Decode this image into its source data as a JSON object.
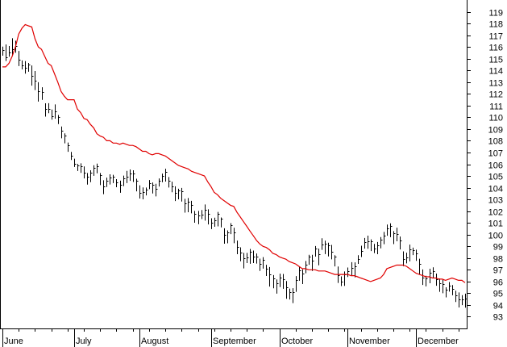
{
  "chart_data": {
    "type": "line",
    "title": "",
    "xlabel": "",
    "ylabel": "",
    "ylim": [
      92,
      120
    ],
    "y_ticks": [
      93,
      94,
      95,
      96,
      97,
      98,
      99,
      100,
      101,
      102,
      103,
      104,
      105,
      106,
      107,
      108,
      109,
      110,
      111,
      112,
      113,
      114,
      115,
      116,
      117,
      118,
      119
    ],
    "y_axis_side": "right",
    "grid": false,
    "legend": "none",
    "x_tick_labels": [
      "June",
      "July",
      "August",
      "September",
      "October",
      "November",
      "December"
    ],
    "month_start_bar": [
      0,
      22,
      42,
      64,
      85,
      106,
      127
    ],
    "bar_count": 143,
    "colors": {
      "bars": "#000000",
      "line": "#e00000",
      "axis": "#000000",
      "background": "#ffffff"
    },
    "series": [
      {
        "type": "ohlc",
        "close": [
          115.75,
          115.13,
          115.55,
          115.81,
          116.08,
          114.92,
          114.43,
          114.19,
          114.53,
          113.56,
          113.15,
          112.23,
          112.17,
          110.7,
          110.7,
          110.08,
          110.54,
          110.01,
          108.87,
          108.43,
          107.65,
          106.74,
          106.02,
          105.88,
          105.8,
          105.27,
          104.96,
          105.25,
          105.69,
          105.86,
          105.04,
          104.11,
          104.59,
          104.88,
          104.93,
          104.46,
          104.24,
          104.79,
          104.94,
          105.19,
          105.24,
          104.6,
          103.59,
          103.63,
          103.81,
          104.38,
          104.26,
          103.9,
          104.6,
          105.01,
          105.34,
          104.62,
          104.12,
          103.56,
          103.79,
          103.71,
          102.64,
          102.82,
          102.55,
          101.75,
          101.65,
          101.71,
          102.12,
          101.78,
          101.03,
          101.22,
          101.79,
          101.34,
          99.98,
          100.17,
          100.79,
          100.19,
          98.93,
          98.48,
          97.98,
          98.04,
          98.53,
          98.13,
          98.11,
          97.52,
          97.87,
          97.12,
          96.6,
          96.24,
          95.84,
          96.31,
          96.21,
          95.53,
          95.09,
          95.07,
          96.11,
          96.93,
          96.71,
          97.44,
          98.11,
          97.78,
          98.78,
          98.36,
          99.14,
          99.2,
          99.09,
          98.51,
          98.11,
          96.57,
          96.02,
          96.58,
          96.86,
          97.15,
          97.3,
          97.91,
          98.63,
          99.37,
          99.43,
          99.45,
          98.84,
          99.07,
          99.59,
          99.92,
          100.55,
          100.73,
          100.11,
          100.08,
          99.52,
          97.92,
          98.07,
          98.74,
          98.67,
          98.38,
          97.5,
          96.31,
          96.26,
          96.72,
          96.91,
          96.19,
          95.86,
          95.81,
          95.3,
          95.67,
          95.35,
          94.84,
          94.46,
          94.45,
          94.55
        ],
        "high": [
          116.03,
          116.21,
          116.08,
          116.74,
          116.53,
          115.66,
          114.85,
          114.79,
          114.63,
          114.42,
          113.95,
          112.99,
          112.56,
          111.19,
          111.2,
          110.66,
          111.1,
          110.2,
          109.22,
          108.63,
          107.85,
          107.05,
          106.47,
          106.03,
          106.08,
          105.81,
          105.25,
          105.48,
          105.91,
          106.05,
          105.25,
          104.63,
          104.86,
          105.14,
          105.1,
          104.73,
          104.6,
          105.03,
          105.43,
          105.55,
          105.48,
          104.76,
          104.2,
          104.02,
          104.01,
          104.65,
          104.44,
          104.33,
          104.79,
          105.2,
          105.61,
          104.91,
          104.51,
          104.12,
          103.91,
          103.98,
          103.05,
          103.12,
          102.88,
          102.02,
          102.02,
          102.1,
          102.57,
          102.16,
          101.39,
          101.44,
          101.93,
          101.46,
          100.54,
          100.36,
          100.98,
          100.58,
          99.49,
          98.91,
          98.44,
          98.44,
          98.78,
          98.64,
          98.39,
          97.95,
          98.08,
          97.43,
          97.24,
          96.55,
          96.18,
          96.67,
          96.64,
          96.04,
          95.4,
          95.43,
          96.46,
          97.29,
          97.03,
          97.75,
          98.28,
          98.28,
          99.03,
          98.8,
          99.69,
          99.48,
          99.31,
          99.12,
          98.24,
          97.28,
          96.44,
          96.86,
          97.19,
          97.65,
          97.63,
          98.24,
          99.05,
          99.71,
          99.91,
          99.59,
          99.21,
          99.37,
          99.79,
          100.23,
          100.86,
          100.96,
          100.3,
          100.59,
          99.83,
          98.57,
          98.46,
          99.15,
          98.89,
          98.72,
          97.94,
          97.03,
          96.49,
          97.09,
          97.21,
          96.68,
          96.26,
          96.17,
          95.51,
          95.96,
          95.7,
          95.22,
          95.07,
          94.84,
          94.97
        ],
        "low": [
          115.25,
          114.8,
          115.17,
          115.27,
          115.5,
          114.37,
          114.08,
          113.72,
          113.89,
          112.7,
          112.32,
          111.34,
          111.49,
          110.06,
          110.35,
          109.8,
          109.88,
          109.42,
          108.21,
          107.78,
          107.06,
          106.36,
          105.77,
          105.42,
          105.26,
          104.79,
          104.26,
          104.47,
          105.01,
          105.23,
          104.22,
          103.45,
          104.06,
          104.27,
          104.39,
          104.04,
          103.57,
          104.13,
          104.39,
          104.58,
          104.49,
          103.69,
          103.08,
          103.01,
          103.34,
          103.88,
          103.51,
          103.26,
          104.1,
          104.47,
          104.52,
          104.01,
          103.61,
          102.86,
          103.01,
          102.82,
          101.87,
          101.91,
          101.81,
          101.01,
          100.88,
          101.32,
          101.19,
          100.87,
          100.47,
          100.67,
          100.7,
          100.62,
          99.22,
          99.26,
          100.04,
          99.27,
          98.33,
          97.73,
          97.12,
          97.57,
          97.51,
          97.57,
          97.53,
          96.9,
          97.1,
          96.47,
          95.57,
          95.42,
          94.97,
          95.53,
          95.38,
          94.53,
          94.47,
          94.16,
          95.12,
          96.07,
          95.78,
          96.7,
          97.43,
          96.9,
          98.12,
          97.38,
          98.7,
          98.34,
          98.14,
          97.89,
          97.29,
          95.88,
          95.61,
          95.63,
          96.39,
          96.52,
          96.35,
          97.5,
          98.09,
          98.8,
          98.79,
          98.6,
          98.42,
          98.33,
          98.83,
          99.18,
          99.9,
          99.78,
          99.19,
          99.43,
          98.73,
          97.31,
          97.55,
          97.72,
          98.25,
          97.76,
          96.6,
          95.71,
          95.59,
          95.85,
          96.3,
          95.64,
          95.12,
          95.0,
          94.65,
          95.14,
          94.83,
          94.25,
          93.79,
          93.99,
          93.77
        ]
      },
      {
        "type": "line",
        "color": "#e00000",
        "values": [
          114.3,
          114.3,
          114.6,
          115.2,
          116.0,
          117.1,
          117.6,
          117.9,
          117.8,
          117.7,
          116.7,
          116.0,
          115.8,
          115.2,
          114.6,
          114.4,
          113.7,
          113.0,
          112.2,
          111.8,
          111.5,
          111.5,
          111.5,
          110.7,
          110.4,
          109.9,
          109.8,
          109.4,
          109.1,
          108.6,
          108.4,
          108.3,
          108.0,
          108.0,
          107.8,
          107.8,
          107.7,
          107.8,
          107.7,
          107.6,
          107.6,
          107.5,
          107.3,
          107.1,
          107.1,
          106.9,
          106.8,
          106.9,
          106.9,
          106.8,
          106.7,
          106.5,
          106.3,
          106.1,
          105.9,
          105.8,
          105.7,
          105.6,
          105.4,
          105.3,
          105.2,
          105.1,
          105.0,
          104.5,
          104.1,
          103.6,
          103.4,
          103.1,
          102.9,
          102.7,
          102.5,
          102.4,
          101.9,
          101.5,
          101.1,
          100.7,
          100.3,
          99.9,
          99.5,
          99.2,
          99.0,
          98.9,
          98.7,
          98.4,
          98.3,
          98.1,
          98.0,
          97.9,
          97.7,
          97.6,
          97.5,
          97.3,
          97.1,
          97.1,
          97.0,
          97.0,
          97.0,
          96.9,
          96.9,
          96.9,
          96.8,
          96.7,
          96.6,
          96.6,
          96.6,
          96.6,
          96.6,
          96.5,
          96.5,
          96.4,
          96.3,
          96.2,
          96.1,
          96.0,
          96.1,
          96.2,
          96.3,
          96.6,
          97.1,
          97.2,
          97.3,
          97.4,
          97.4,
          97.4,
          97.3,
          97.1,
          96.9,
          96.7,
          96.6,
          96.5,
          96.4,
          96.4,
          96.3,
          96.3,
          96.2,
          96.2,
          96.1,
          96.2,
          96.3,
          96.2,
          96.1,
          96.1,
          95.9
        ]
      }
    ]
  }
}
